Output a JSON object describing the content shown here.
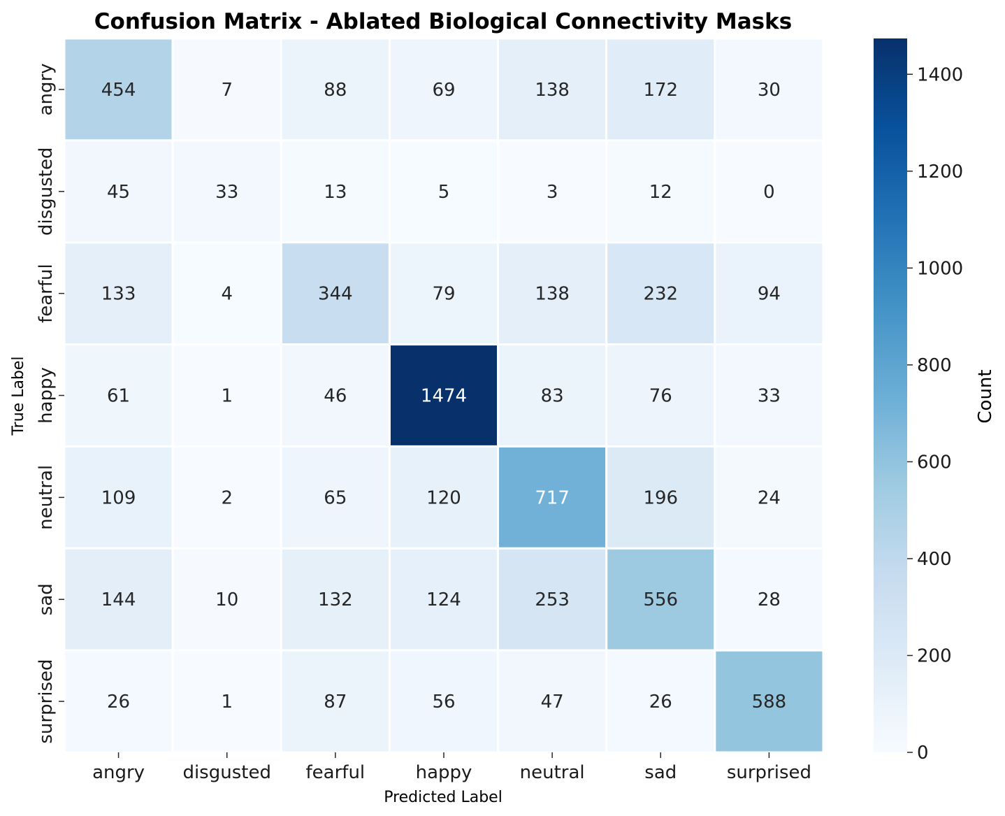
{
  "chart_data": {
    "type": "heatmap",
    "title": "Confusion Matrix - Ablated Biological Connectivity Masks",
    "xlabel": "Predicted Label",
    "ylabel": "True Label",
    "x_categories": [
      "angry",
      "disgusted",
      "fearful",
      "happy",
      "neutral",
      "sad",
      "surprised"
    ],
    "y_categories": [
      "angry",
      "disgusted",
      "fearful",
      "happy",
      "neutral",
      "sad",
      "surprised"
    ],
    "values": [
      [
        454,
        7,
        88,
        69,
        138,
        172,
        30
      ],
      [
        45,
        33,
        13,
        5,
        3,
        12,
        0
      ],
      [
        133,
        4,
        344,
        79,
        138,
        232,
        94
      ],
      [
        61,
        1,
        46,
        1474,
        83,
        76,
        33
      ],
      [
        109,
        2,
        65,
        120,
        717,
        196,
        24
      ],
      [
        144,
        10,
        132,
        124,
        253,
        556,
        28
      ],
      [
        26,
        1,
        87,
        56,
        47,
        26,
        588
      ]
    ],
    "colormap": "Blues",
    "colorbar": {
      "label": "Count",
      "range": [
        0,
        1474
      ],
      "ticks": [
        0,
        200,
        400,
        600,
        800,
        1000,
        1200,
        1400
      ]
    }
  }
}
